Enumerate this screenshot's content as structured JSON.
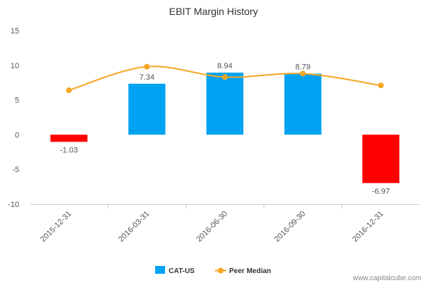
{
  "chart_data": {
    "type": "bar",
    "title": "EBIT Margin History",
    "xlabel": "",
    "ylabel": "",
    "categories": [
      "2015-12-31",
      "2016-03-31",
      "2016-06-30",
      "2016-09-30",
      "2016-12-31"
    ],
    "series": [
      {
        "name": "CAT-US",
        "type": "bar",
        "values": [
          -1.03,
          7.34,
          8.94,
          8.79,
          -6.97
        ],
        "data_labels": [
          "-1.03",
          "7.34",
          "8.94",
          "8.79",
          "-6.97"
        ],
        "positive_color": "#00A2F2",
        "negative_color": "#FF0000"
      },
      {
        "name": "Peer Median",
        "type": "line",
        "values": [
          6.4,
          9.8,
          8.3,
          8.8,
          7.1
        ],
        "color": "#F5A623"
      }
    ],
    "ylim": [
      -10,
      15
    ],
    "yticks": [
      15,
      10,
      5,
      0,
      -5,
      -10
    ],
    "ytick_labels": [
      "15",
      "10",
      "5",
      "0",
      "-5",
      "-10"
    ],
    "grid": false,
    "legend": "bottom-center"
  },
  "watermark": "www.capitalcube.com"
}
